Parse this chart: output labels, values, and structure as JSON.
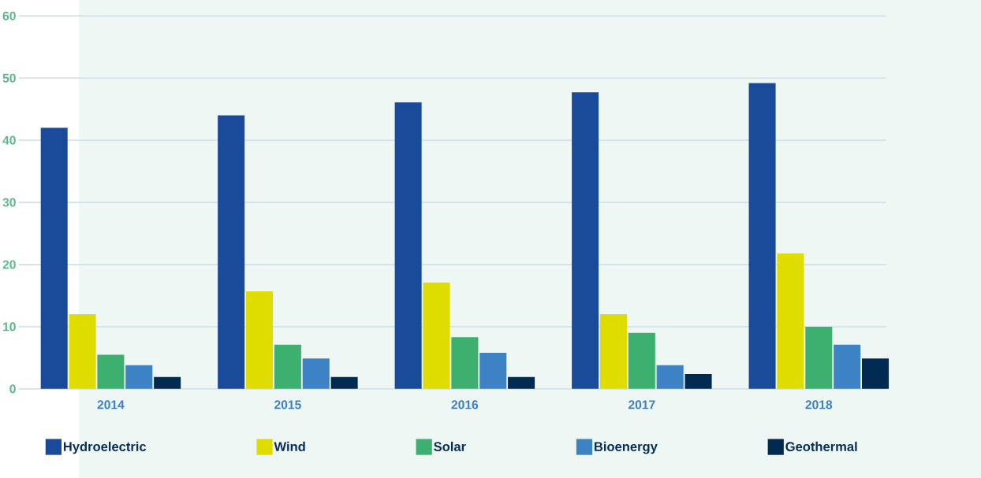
{
  "chart_data": {
    "type": "bar",
    "categories": [
      "2014",
      "2015",
      "2016",
      "2017",
      "2018"
    ],
    "series": [
      {
        "name": "Hydroelectric",
        "color": "#1a4b9a",
        "values": [
          42,
          44,
          46.1,
          47.7,
          49.2
        ]
      },
      {
        "name": "Wind",
        "color": "#dfdc00",
        "values": [
          12,
          15.7,
          17.1,
          12,
          21.8
        ]
      },
      {
        "name": "Solar",
        "color": "#3daf6f",
        "values": [
          5.5,
          7.1,
          8.3,
          9,
          10
        ]
      },
      {
        "name": "Bioenergy",
        "color": "#3d82c4",
        "values": [
          3.8,
          4.9,
          5.8,
          3.8,
          7.1
        ]
      },
      {
        "name": "Geothermal",
        "color": "#002a52",
        "values": [
          1.9,
          1.9,
          1.9,
          2.4,
          4.9
        ]
      }
    ],
    "ylim": [
      0,
      60
    ],
    "yticks": [
      0,
      10,
      20,
      30,
      40,
      50,
      60
    ],
    "grid": "y",
    "legend": "bottom"
  }
}
